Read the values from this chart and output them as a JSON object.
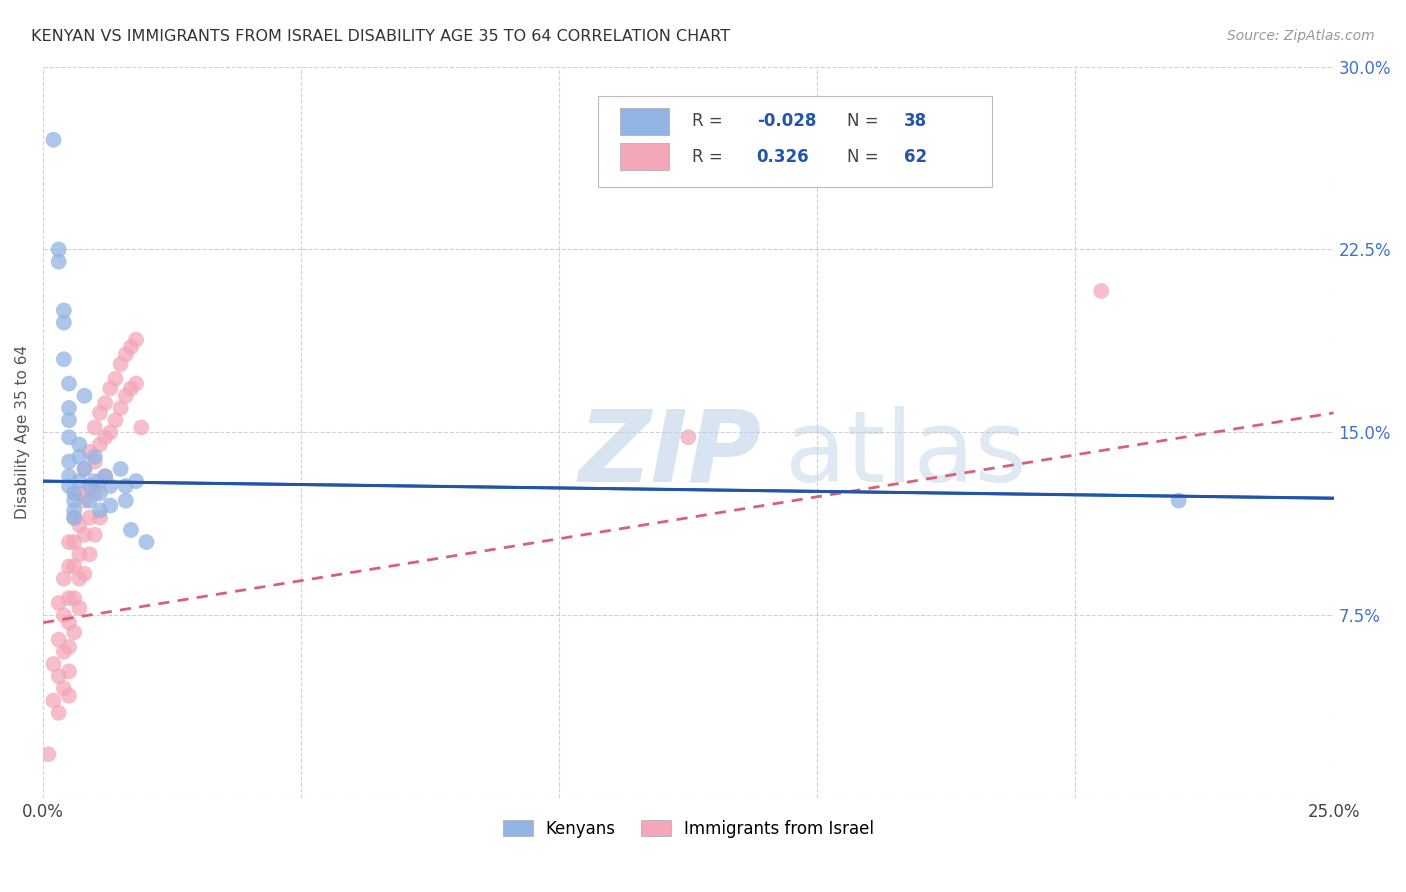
{
  "title": "KENYAN VS IMMIGRANTS FROM ISRAEL DISABILITY AGE 35 TO 64 CORRELATION CHART",
  "source": "Source: ZipAtlas.com",
  "ylabel": "Disability Age 35 to 64",
  "xlim": [
    0.0,
    0.25
  ],
  "ylim": [
    0.0,
    0.3
  ],
  "xticks": [
    0.0,
    0.05,
    0.1,
    0.15,
    0.2,
    0.25
  ],
  "yticks": [
    0.0,
    0.075,
    0.15,
    0.225,
    0.3
  ],
  "xtick_labels": [
    "0.0%",
    "",
    "",
    "",
    "",
    "25.0%"
  ],
  "ytick_labels_right": [
    "",
    "7.5%",
    "15.0%",
    "22.5%",
    "30.0%"
  ],
  "kenyan_color": "#92b4e3",
  "israel_color": "#f4a7b9",
  "kenyan_line_color": "#2255aa",
  "israel_line_color": "#d9607a",
  "kenyan_R": -0.028,
  "kenyan_N": 38,
  "israel_R": 0.326,
  "israel_N": 62,
  "legend_labels": [
    "Kenyans",
    "Immigrants from Israel"
  ],
  "background_color": "#ffffff",
  "grid_color": "#cccccc",
  "kenyan_line_y0": 0.13,
  "kenyan_line_y1": 0.123,
  "israel_line_y0": 0.072,
  "israel_line_y1": 0.158,
  "kenyan_scatter_x": [
    0.002,
    0.003,
    0.003,
    0.004,
    0.004,
    0.004,
    0.005,
    0.005,
    0.005,
    0.005,
    0.005,
    0.005,
    0.005,
    0.006,
    0.006,
    0.006,
    0.006,
    0.007,
    0.007,
    0.007,
    0.008,
    0.008,
    0.009,
    0.009,
    0.01,
    0.01,
    0.011,
    0.011,
    0.012,
    0.013,
    0.013,
    0.015,
    0.016,
    0.016,
    0.017,
    0.018,
    0.02,
    0.22
  ],
  "kenyan_scatter_y": [
    0.27,
    0.225,
    0.22,
    0.2,
    0.195,
    0.18,
    0.17,
    0.16,
    0.155,
    0.148,
    0.138,
    0.132,
    0.128,
    0.125,
    0.122,
    0.118,
    0.115,
    0.145,
    0.14,
    0.13,
    0.165,
    0.135,
    0.128,
    0.122,
    0.14,
    0.13,
    0.125,
    0.118,
    0.132,
    0.128,
    0.12,
    0.135,
    0.128,
    0.122,
    0.11,
    0.13,
    0.105,
    0.122
  ],
  "israel_scatter_x": [
    0.001,
    0.002,
    0.002,
    0.003,
    0.003,
    0.003,
    0.003,
    0.004,
    0.004,
    0.004,
    0.004,
    0.005,
    0.005,
    0.005,
    0.005,
    0.005,
    0.005,
    0.005,
    0.006,
    0.006,
    0.006,
    0.006,
    0.006,
    0.007,
    0.007,
    0.007,
    0.007,
    0.007,
    0.008,
    0.008,
    0.008,
    0.008,
    0.009,
    0.009,
    0.009,
    0.009,
    0.01,
    0.01,
    0.01,
    0.01,
    0.011,
    0.011,
    0.011,
    0.011,
    0.012,
    0.012,
    0.012,
    0.013,
    0.013,
    0.014,
    0.014,
    0.015,
    0.015,
    0.016,
    0.016,
    0.017,
    0.017,
    0.018,
    0.018,
    0.019,
    0.125,
    0.205
  ],
  "israel_scatter_y": [
    0.018,
    0.055,
    0.04,
    0.08,
    0.065,
    0.05,
    0.035,
    0.09,
    0.075,
    0.06,
    0.045,
    0.105,
    0.095,
    0.082,
    0.072,
    0.062,
    0.052,
    0.042,
    0.115,
    0.105,
    0.095,
    0.082,
    0.068,
    0.125,
    0.112,
    0.1,
    0.09,
    0.078,
    0.135,
    0.122,
    0.108,
    0.092,
    0.142,
    0.128,
    0.115,
    0.1,
    0.152,
    0.138,
    0.125,
    0.108,
    0.158,
    0.145,
    0.13,
    0.115,
    0.162,
    0.148,
    0.132,
    0.168,
    0.15,
    0.172,
    0.155,
    0.178,
    0.16,
    0.182,
    0.165,
    0.185,
    0.168,
    0.188,
    0.17,
    0.152,
    0.148,
    0.208
  ]
}
